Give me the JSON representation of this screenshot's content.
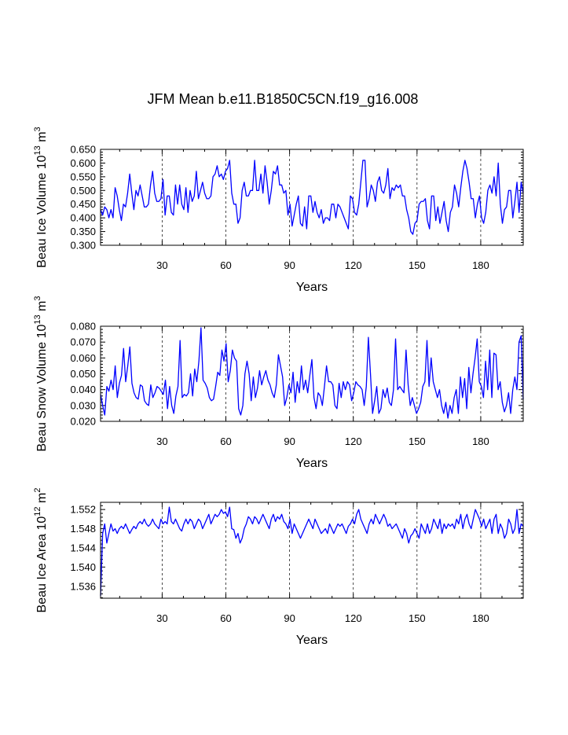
{
  "title": "JFM Mean b.e11.B1850C5CN.f19_g16.008",
  "chart_data": [
    {
      "type": "line",
      "ylabel": "Beau Ice Volume 10",
      "ylabel_exp1": "13",
      "ylabel_unit": " m",
      "ylabel_exp2": "3",
      "xlabel": "Years",
      "xlim": [
        1,
        200
      ],
      "ylim": [
        0.3,
        0.65
      ],
      "yticks": [
        "0.300",
        "0.350",
        "0.400",
        "0.450",
        "0.500",
        "0.550",
        "0.600",
        "0.650"
      ],
      "ytick_values": [
        0.3,
        0.35,
        0.4,
        0.45,
        0.5,
        0.55,
        0.6,
        0.65
      ],
      "xticks": [
        "30",
        "60",
        "90",
        "120",
        "150",
        "180"
      ],
      "xtick_values": [
        30,
        60,
        90,
        120,
        150,
        180
      ],
      "series_color": "#0000ff",
      "values": [
        0.43,
        0.41,
        0.44,
        0.43,
        0.4,
        0.43,
        0.4,
        0.51,
        0.48,
        0.43,
        0.39,
        0.45,
        0.44,
        0.49,
        0.56,
        0.49,
        0.43,
        0.5,
        0.48,
        0.52,
        0.48,
        0.44,
        0.44,
        0.45,
        0.52,
        0.57,
        0.49,
        0.46,
        0.46,
        0.47,
        0.54,
        0.41,
        0.48,
        0.48,
        0.42,
        0.41,
        0.52,
        0.45,
        0.52,
        0.45,
        0.43,
        0.51,
        0.42,
        0.5,
        0.46,
        0.48,
        0.57,
        0.47,
        0.5,
        0.53,
        0.49,
        0.47,
        0.47,
        0.48,
        0.55,
        0.56,
        0.59,
        0.55,
        0.56,
        0.54,
        0.57,
        0.58,
        0.61,
        0.49,
        0.45,
        0.45,
        0.38,
        0.4,
        0.5,
        0.53,
        0.48,
        0.48,
        0.5,
        0.5,
        0.61,
        0.5,
        0.5,
        0.56,
        0.49,
        0.59,
        0.53,
        0.45,
        0.5,
        0.57,
        0.56,
        0.59,
        0.52,
        0.52,
        0.49,
        0.5,
        0.41,
        0.45,
        0.37,
        0.41,
        0.45,
        0.48,
        0.38,
        0.37,
        0.44,
        0.36,
        0.48,
        0.48,
        0.42,
        0.46,
        0.42,
        0.4,
        0.43,
        0.38,
        0.4,
        0.4,
        0.39,
        0.45,
        0.45,
        0.4,
        0.45,
        0.44,
        0.42,
        0.4,
        0.38,
        0.36,
        0.48,
        0.47,
        0.42,
        0.41,
        0.45,
        0.53,
        0.61,
        0.61,
        0.44,
        0.47,
        0.52,
        0.5,
        0.46,
        0.53,
        0.55,
        0.5,
        0.49,
        0.52,
        0.58,
        0.47,
        0.51,
        0.5,
        0.52,
        0.51,
        0.52,
        0.48,
        0.48,
        0.43,
        0.4,
        0.35,
        0.34,
        0.38,
        0.39,
        0.45,
        0.46,
        0.46,
        0.47,
        0.39,
        0.36,
        0.48,
        0.48,
        0.39,
        0.44,
        0.38,
        0.42,
        0.46,
        0.39,
        0.35,
        0.42,
        0.44,
        0.52,
        0.49,
        0.44,
        0.51,
        0.57,
        0.61,
        0.58,
        0.53,
        0.47,
        0.47,
        0.4,
        0.45,
        0.48,
        0.4,
        0.38,
        0.42,
        0.5,
        0.52,
        0.49,
        0.55,
        0.48,
        0.6,
        0.45,
        0.38,
        0.43,
        0.44,
        0.5,
        0.5,
        0.4,
        0.46,
        0.53,
        0.42,
        0.53,
        0.49
      ]
    },
    {
      "type": "line",
      "ylabel": "Beau Snow Volume 10",
      "ylabel_exp1": "13",
      "ylabel_unit": " m",
      "ylabel_exp2": "3",
      "xlabel": "Years",
      "xlim": [
        1,
        200
      ],
      "ylim": [
        0.02,
        0.08
      ],
      "yticks": [
        "0.020",
        "0.030",
        "0.040",
        "0.050",
        "0.060",
        "0.070",
        "0.080"
      ],
      "ytick_values": [
        0.02,
        0.03,
        0.04,
        0.05,
        0.06,
        0.07,
        0.08
      ],
      "xticks": [
        "30",
        "60",
        "90",
        "120",
        "150",
        "180"
      ],
      "xtick_values": [
        30,
        60,
        90,
        120,
        150,
        180
      ],
      "series_color": "#0000ff",
      "values": [
        0.037,
        0.03,
        0.024,
        0.042,
        0.039,
        0.046,
        0.04,
        0.055,
        0.035,
        0.044,
        0.049,
        0.066,
        0.045,
        0.055,
        0.067,
        0.044,
        0.038,
        0.035,
        0.034,
        0.043,
        0.042,
        0.033,
        0.031,
        0.03,
        0.043,
        0.035,
        0.038,
        0.042,
        0.041,
        0.039,
        0.037,
        0.046,
        0.028,
        0.042,
        0.03,
        0.025,
        0.036,
        0.042,
        0.071,
        0.035,
        0.037,
        0.036,
        0.038,
        0.05,
        0.036,
        0.053,
        0.045,
        0.058,
        0.079,
        0.046,
        0.044,
        0.041,
        0.035,
        0.033,
        0.034,
        0.042,
        0.051,
        0.049,
        0.065,
        0.058,
        0.069,
        0.045,
        0.052,
        0.065,
        0.06,
        0.058,
        0.028,
        0.024,
        0.03,
        0.05,
        0.058,
        0.05,
        0.033,
        0.048,
        0.035,
        0.041,
        0.052,
        0.043,
        0.048,
        0.052,
        0.046,
        0.043,
        0.038,
        0.035,
        0.043,
        0.062,
        0.055,
        0.048,
        0.03,
        0.035,
        0.043,
        0.038,
        0.051,
        0.032,
        0.045,
        0.038,
        0.055,
        0.04,
        0.046,
        0.038,
        0.049,
        0.059,
        0.035,
        0.028,
        0.038,
        0.036,
        0.03,
        0.042,
        0.055,
        0.045,
        0.045,
        0.043,
        0.03,
        0.028,
        0.044,
        0.035,
        0.045,
        0.04,
        0.045,
        0.043,
        0.033,
        0.038,
        0.045,
        0.043,
        0.042,
        0.04,
        0.03,
        0.042,
        0.073,
        0.05,
        0.025,
        0.033,
        0.042,
        0.025,
        0.028,
        0.04,
        0.035,
        0.041,
        0.032,
        0.03,
        0.04,
        0.072,
        0.04,
        0.042,
        0.04,
        0.038,
        0.065,
        0.043,
        0.03,
        0.035,
        0.03,
        0.025,
        0.028,
        0.032,
        0.042,
        0.045,
        0.071,
        0.042,
        0.06,
        0.045,
        0.04,
        0.035,
        0.04,
        0.03,
        0.025,
        0.032,
        0.022,
        0.03,
        0.025,
        0.035,
        0.04,
        0.025,
        0.048,
        0.035,
        0.047,
        0.028,
        0.054,
        0.038,
        0.05,
        0.06,
        0.072,
        0.045,
        0.042,
        0.035,
        0.058,
        0.04,
        0.065,
        0.035,
        0.063,
        0.062,
        0.04,
        0.045,
        0.032,
        0.026,
        0.03,
        0.038,
        0.025,
        0.04,
        0.048,
        0.04,
        0.07,
        0.074,
        0.034
      ]
    },
    {
      "type": "line",
      "ylabel": "Beau Ice Area 10",
      "ylabel_exp1": "12",
      "ylabel_unit": " m",
      "ylabel_exp2": "2",
      "xlabel": "Years",
      "xlim": [
        1,
        200
      ],
      "ylim": [
        1.5335,
        1.5535
      ],
      "yticks": [
        "1.536",
        "1.540",
        "1.544",
        "1.548",
        "1.552"
      ],
      "ytick_values": [
        1.536,
        1.54,
        1.544,
        1.548,
        1.552
      ],
      "xticks": [
        "30",
        "60",
        "90",
        "120",
        "150",
        "180"
      ],
      "xtick_values": [
        30,
        60,
        90,
        120,
        150,
        180
      ],
      "series_color": "#0000ff",
      "values": [
        1.534,
        1.547,
        1.549,
        1.545,
        1.547,
        1.549,
        1.5475,
        1.548,
        1.547,
        1.548,
        1.5485,
        1.548,
        1.549,
        1.548,
        1.547,
        1.5478,
        1.5485,
        1.548,
        1.549,
        1.5495,
        1.549,
        1.55,
        1.549,
        1.5485,
        1.549,
        1.55,
        1.549,
        1.5485,
        1.548,
        1.55,
        1.549,
        1.5495,
        1.549,
        1.5525,
        1.5495,
        1.549,
        1.55,
        1.549,
        1.548,
        1.5475,
        1.549,
        1.55,
        1.549,
        1.55,
        1.5495,
        1.548,
        1.549,
        1.55,
        1.5495,
        1.548,
        1.549,
        1.55,
        1.551,
        1.549,
        1.55,
        1.551,
        1.5505,
        1.551,
        1.552,
        1.5512,
        1.5515,
        1.5505,
        1.5525,
        1.548,
        1.5478,
        1.546,
        1.547,
        1.545,
        1.546,
        1.548,
        1.549,
        1.5505,
        1.55,
        1.549,
        1.5505,
        1.55,
        1.549,
        1.55,
        1.551,
        1.55,
        1.549,
        1.548,
        1.55,
        1.551,
        1.5495,
        1.5505,
        1.55,
        1.551,
        1.5495,
        1.549,
        1.548,
        1.55,
        1.547,
        1.549,
        1.548,
        1.547,
        1.546,
        1.547,
        1.548,
        1.549,
        1.55,
        1.549,
        1.548,
        1.55,
        1.549,
        1.548,
        1.547,
        1.5475,
        1.548,
        1.547,
        1.549,
        1.548,
        1.547,
        1.548,
        1.549,
        1.5485,
        1.549,
        1.548,
        1.547,
        1.5485,
        1.549,
        1.55,
        1.549,
        1.551,
        1.552,
        1.55,
        1.549,
        1.548,
        1.547,
        1.549,
        1.55,
        1.549,
        1.551,
        1.55,
        1.549,
        1.55,
        1.551,
        1.55,
        1.5485,
        1.549,
        1.548,
        1.5485,
        1.549,
        1.548,
        1.547,
        1.546,
        1.548,
        1.547,
        1.545,
        1.5465,
        1.547,
        1.548,
        1.547,
        1.546,
        1.549,
        1.548,
        1.547,
        1.549,
        1.547,
        1.548,
        1.55,
        1.549,
        1.548,
        1.55,
        1.547,
        1.549,
        1.548,
        1.549,
        1.5485,
        1.549,
        1.548,
        1.55,
        1.549,
        1.551,
        1.548,
        1.55,
        1.551,
        1.549,
        1.548,
        1.55,
        1.552,
        1.551,
        1.55,
        1.5485,
        1.55,
        1.548,
        1.549,
        1.55,
        1.547,
        1.55,
        1.551,
        1.547,
        1.549,
        1.548,
        1.546,
        1.547,
        1.55,
        1.549,
        1.547,
        1.548,
        1.552,
        1.547,
        1.549,
        1.5485
      ]
    }
  ]
}
